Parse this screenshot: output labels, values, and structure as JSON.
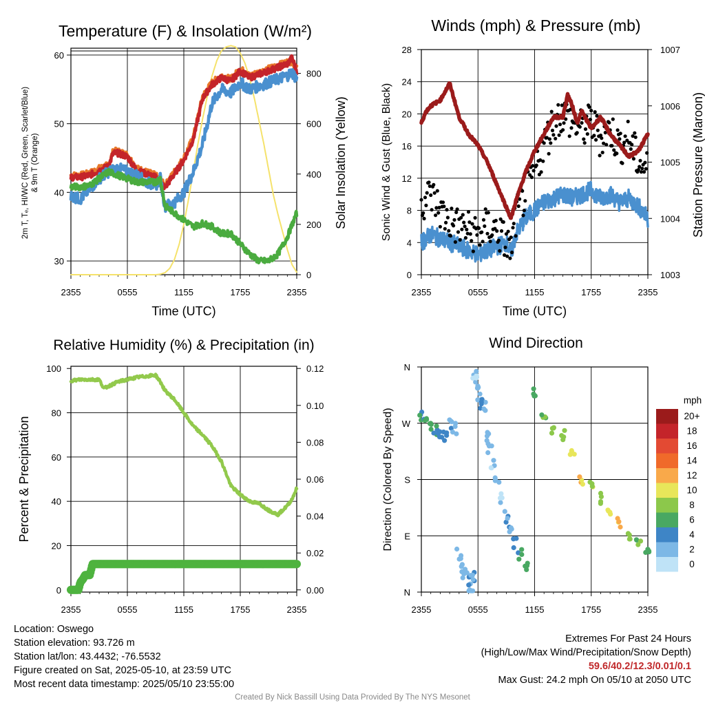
{
  "colors": {
    "red": "#c4242a",
    "orange": "#e8772a",
    "green": "#4aab3f",
    "blue": "#4a90cf",
    "yellow": "#f5e26b",
    "maroon": "#9b1b1b",
    "black": "#000000",
    "rh": "#92c94c",
    "precip": "#4eb33f"
  },
  "chart_data": [
    {
      "id": "temp",
      "type": "line",
      "title": "Temperature (F) & Insolation (W/m²)",
      "xlabel": "Time (UTC)",
      "ylabel_lines": [
        "2m T, Tₑ, HI/WC (Red, Green, Scarlet/Blue)",
        "& 9m T (Orange)"
      ],
      "ylabel_right": "Solar Insolation (Yellow)",
      "x_ticks": [
        "2355",
        "0555",
        "1155",
        "1755",
        "2355"
      ],
      "ylim": [
        28,
        61
      ],
      "y_ticks": [
        30,
        40,
        50,
        60
      ],
      "ylim_right": [
        0,
        900
      ],
      "y_ticks_right": [
        0,
        200,
        400,
        600,
        800
      ],
      "series": [
        {
          "key": "yellow",
          "axis": "right",
          "x": [
            0,
            1,
            2,
            3,
            4,
            5,
            6,
            7,
            8,
            9,
            9.5,
            10,
            10.5,
            11,
            11.5,
            12,
            12.5,
            13,
            13.5,
            14,
            14.5,
            15,
            15.5,
            16,
            16.5,
            17,
            17.5,
            18,
            18.5,
            19,
            19.5,
            20,
            20.5,
            21,
            21.5,
            22,
            22.5,
            23,
            23.5,
            24
          ],
          "values": [
            0,
            0,
            0,
            0,
            0,
            0,
            0,
            0,
            0,
            0,
            2,
            8,
            25,
            60,
            120,
            200,
            300,
            410,
            520,
            620,
            710,
            790,
            850,
            890,
            905,
            910,
            905,
            880,
            840,
            780,
            700,
            610,
            520,
            420,
            320,
            240,
            170,
            100,
            40,
            10
          ]
        },
        {
          "key": "orange",
          "x": [
            0,
            1,
            2,
            3,
            4,
            4.5,
            5,
            6,
            7,
            8,
            9,
            10,
            11,
            12,
            13,
            14,
            15,
            16,
            17,
            18,
            19,
            20,
            21,
            22,
            23,
            23.5,
            24
          ],
          "values": [
            42.5,
            42.5,
            42.8,
            43.5,
            44,
            46,
            46,
            45.5,
            43.5,
            43,
            42.5,
            41,
            43,
            45,
            48,
            54,
            56,
            57,
            56.5,
            58,
            57,
            57.5,
            58,
            58.5,
            59,
            59,
            58
          ]
        },
        {
          "key": "red",
          "x": [
            0,
            1,
            2,
            3,
            4,
            4.5,
            5,
            6,
            7,
            8,
            9,
            10,
            11,
            12,
            13,
            14,
            15,
            16,
            17,
            18,
            19,
            20,
            21,
            22,
            23,
            23.5,
            24
          ],
          "values": [
            42.2,
            42.2,
            42.5,
            43.2,
            43.8,
            45.7,
            45.7,
            45.2,
            43.2,
            42.7,
            42.2,
            40.7,
            42.7,
            44.7,
            47.7,
            53.7,
            55.7,
            56.7,
            56.2,
            57.7,
            56.7,
            57.2,
            57.7,
            58.2,
            58.7,
            59.6,
            57.7
          ]
        },
        {
          "key": "blue",
          "x": [
            0,
            1,
            2,
            3,
            4,
            5,
            6,
            7,
            8,
            9,
            9.5,
            10,
            11,
            12,
            13,
            14,
            15,
            16,
            17,
            18,
            19,
            20,
            21,
            22,
            23,
            23.5,
            24
          ],
          "values": [
            39.5,
            39,
            40.5,
            42,
            43,
            43.5,
            43,
            42.5,
            41.5,
            41,
            42,
            38,
            38.5,
            40,
            43,
            47,
            53,
            55,
            54.5,
            56,
            55,
            55.5,
            56,
            56.5,
            57,
            57.5,
            56.5
          ]
        },
        {
          "key": "green",
          "x": [
            0,
            1,
            2,
            3,
            4,
            5,
            6,
            7,
            8,
            9,
            9.5,
            10,
            11,
            12,
            13,
            14,
            15,
            16,
            17,
            18,
            19,
            20,
            21,
            22,
            23,
            24
          ],
          "values": [
            40.8,
            40.8,
            41,
            42,
            43,
            42.5,
            42,
            41.5,
            41.5,
            41.5,
            42,
            38,
            37,
            36,
            35,
            35.5,
            35,
            34,
            34,
            32.5,
            31,
            30,
            30,
            31,
            33.5,
            37
          ]
        }
      ]
    },
    {
      "id": "wind",
      "type": "scatter",
      "title": "Winds (mph) & Pressure (mb)",
      "xlabel": "Time (UTC)",
      "ylabel": "Sonic Wind & Gust (Blue, Black)",
      "ylabel_right": "Station Pressure (Maroon)",
      "x_ticks": [
        "2355",
        "0555",
        "1155",
        "1755",
        "2355"
      ],
      "ylim": [
        0,
        28
      ],
      "y_ticks": [
        0,
        4,
        8,
        12,
        16,
        20,
        24,
        28
      ],
      "ylim_right": [
        1003,
        1007
      ],
      "y_ticks_right": [
        1003,
        1004,
        1005,
        1006,
        1007
      ],
      "pressure": {
        "x": [
          0,
          0.5,
          1,
          2,
          3,
          3.5,
          4,
          5,
          6,
          7,
          8,
          9,
          9.5,
          10,
          11,
          12,
          13,
          14,
          15,
          15.5,
          16,
          16.5,
          17,
          18,
          19,
          20,
          21,
          22,
          23,
          24
        ],
        "values": [
          1005.7,
          1005.9,
          1006,
          1006.1,
          1006.4,
          1006.1,
          1005.8,
          1005.5,
          1005.3,
          1005,
          1004.6,
          1004.2,
          1004,
          1004.3,
          1004.8,
          1005.2,
          1005.5,
          1005.8,
          1005.8,
          1006.2,
          1006.0,
          1005.7,
          1005.9,
          1005.6,
          1005.8,
          1005.5,
          1005.3,
          1005.1,
          1005.2,
          1005.5
        ]
      },
      "sonic": {
        "x": [
          0,
          1,
          2,
          3,
          4,
          5,
          6,
          7,
          8,
          9,
          9.5,
          10,
          11,
          12,
          13,
          14,
          15,
          16,
          17,
          18,
          19,
          20,
          21,
          22,
          23,
          24
        ],
        "values": [
          4,
          5,
          4.5,
          4,
          3.5,
          3,
          2.5,
          3,
          3.5,
          4,
          2.5,
          5,
          7,
          8,
          9,
          9.5,
          10,
          9.5,
          10,
          10.5,
          9.5,
          10,
          9,
          9.5,
          8.5,
          7
        ]
      },
      "gust": {
        "x": [
          0,
          1,
          2,
          3,
          4,
          5,
          6,
          7,
          8,
          9,
          9.5,
          10,
          11,
          12,
          13,
          14,
          15,
          16,
          17,
          18,
          19,
          20,
          21,
          22,
          23,
          24
        ],
        "values": [
          9,
          10,
          8,
          6.5,
          6,
          5.5,
          5,
          6,
          5.5,
          4,
          3,
          7,
          10,
          13,
          16,
          19,
          20,
          19,
          18,
          19,
          17,
          18,
          16,
          17,
          14,
          13
        ]
      }
    },
    {
      "id": "rh",
      "type": "line",
      "title": "Relative Humidity (%) & Precipitation (in)",
      "ylabel": "Percent & Precipitation",
      "x_ticks": [
        "2355",
        "0555",
        "1155",
        "1755",
        "2355"
      ],
      "ylim": [
        -1,
        101
      ],
      "y_ticks": [
        0,
        20,
        40,
        60,
        80,
        100
      ],
      "ylim_right": [
        -0.0012,
        0.1212
      ],
      "y_ticks_right": [
        "0.00",
        "0.02",
        "0.04",
        "0.06",
        "0.08",
        "0.10",
        "0.12"
      ],
      "rh": {
        "x": [
          0,
          1,
          2,
          3,
          3.5,
          4,
          5,
          6,
          7,
          8,
          9,
          9.5,
          10,
          11,
          12,
          13,
          14,
          15,
          16,
          17,
          18,
          19,
          20,
          21,
          22,
          23,
          23.5,
          24
        ],
        "values": [
          94.5,
          95,
          95,
          95,
          91,
          92,
          94,
          95,
          96,
          96.5,
          97,
          94,
          90,
          86,
          80,
          74,
          70,
          65,
          58,
          47,
          43,
          40,
          39,
          36,
          34,
          38,
          41,
          46
        ]
      },
      "precip": {
        "x": [
          0,
          0.8,
          1,
          1.3,
          1.5,
          2,
          2.3,
          24
        ],
        "values": [
          0,
          0,
          0.004,
          0.006,
          0.008,
          0.008,
          0.014,
          0.014
        ]
      }
    },
    {
      "id": "dir",
      "type": "scatter",
      "title": "Wind Direction",
      "ylabel": "Direction (Colored By Speed)",
      "x_ticks": [
        "2355",
        "0555",
        "1155",
        "1755",
        "2355"
      ],
      "y_ticks": [
        "N",
        "E",
        "S",
        "W",
        "N"
      ],
      "ylim": [
        0,
        360
      ],
      "legend_title": "mph",
      "legend_labels": [
        "20+",
        "18",
        "16",
        "14",
        "12",
        "10",
        "8",
        "6",
        "4",
        "2",
        "0"
      ],
      "legend_colors": [
        "#9b1b1b",
        "#c4242a",
        "#e34a33",
        "#f06a2a",
        "#f9a94a",
        "#e8e65a",
        "#8cc84b",
        "#49a862",
        "#3e85c6",
        "#7db8e6",
        "#bfe3f7"
      ],
      "x": [
        0,
        0.5,
        1,
        1.5,
        2,
        2.5,
        3,
        3.5,
        4,
        4.3,
        4.6,
        5,
        5.2,
        5.4,
        5.6,
        5.8,
        6,
        6.2,
        6.4,
        6.6,
        7,
        7.2,
        7.5,
        8,
        8.5,
        9,
        9.5,
        10,
        10.5,
        11,
        12,
        13,
        14,
        15,
        16,
        17,
        18,
        19,
        20,
        21,
        22,
        23,
        24
      ],
      "values": [
        280,
        270,
        265,
        260,
        255,
        250,
        270,
        262,
        60,
        40,
        30,
        20,
        8,
        25,
        340,
        350,
        330,
        310,
        300,
        295,
        250,
        230,
        205,
        180,
        150,
        120,
        100,
        80,
        60,
        40,
        320,
        280,
        260,
        250,
        220,
        180,
        170,
        150,
        130,
        110,
        90,
        75,
        70
      ],
      "speeds": [
        5,
        5,
        6,
        5,
        4,
        4,
        3,
        3,
        2,
        2,
        2,
        3,
        2,
        3,
        1,
        1,
        2,
        2,
        3,
        3,
        2,
        2,
        1,
        2,
        1,
        3,
        3,
        4,
        5,
        6,
        6,
        7,
        8,
        9,
        10,
        11,
        9,
        8,
        10,
        11,
        8,
        7,
        6
      ]
    }
  ],
  "info": {
    "location": "Location: Oswego",
    "elevation": "Station elevation: 93.726 m",
    "latlon": "Station lat/lon: 43.4432; -76.5532",
    "created": "Figure created on Sat, 2025-05-10, at 23:59 UTC",
    "timestamp": "Most recent data timestamp: 2025/05/10 23:55:00",
    "extremes_title": "Extremes For Past 24 Hours",
    "extremes_sub": "(High/Low/Max Wind/Precipitation/Snow Depth)",
    "extremes_values": "59.6/40.2/12.3/0.01/0.1",
    "max_gust": "Max Gust: 24.2 mph On 05/10 at 2050 UTC",
    "credit": "Created By Nick Bassill Using Data Provided By The NYS Mesonet"
  }
}
